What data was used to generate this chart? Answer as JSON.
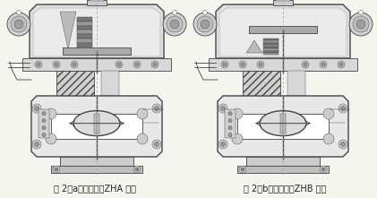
{
  "fig_width": 4.21,
  "fig_height": 2.21,
  "dpi": 100,
  "bg_color": "#f5f5f0",
  "label_left": "图 2（a）正作用（ZHA 型）",
  "label_right": "图 2（b）反作用（ZHB 型）",
  "label_fontsize": 7.0,
  "label_color": "#222222",
  "line_color": "#444444",
  "light_gray": "#cccccc",
  "mid_gray": "#999999",
  "dark_gray": "#666666",
  "hatch_color": "#888888",
  "bg_fill": "#e8e8e8",
  "white": "#ffffff"
}
